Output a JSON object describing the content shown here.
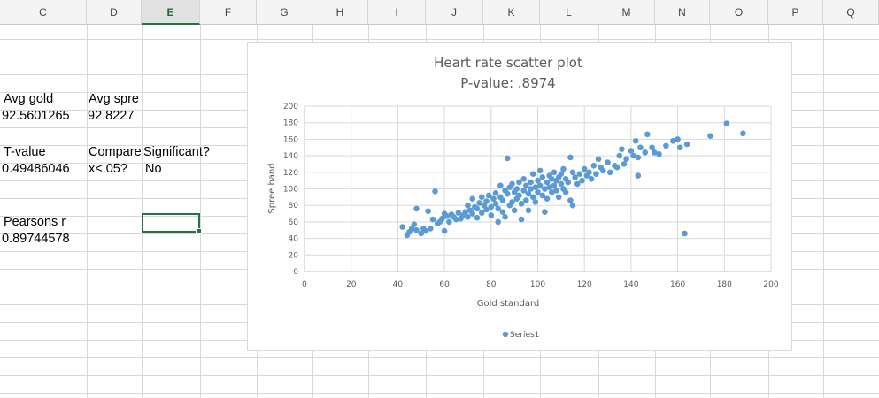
{
  "columns": [
    "C",
    "D",
    "E",
    "F",
    "G",
    "H",
    "I",
    "J",
    "K",
    "L",
    "M",
    "N",
    "O",
    "P",
    "Q"
  ],
  "selected_column": "E",
  "cells": {
    "c5": "Avg gold",
    "d5": "Avg spre",
    "c6": "92.5601265",
    "d6": "92.8227",
    "c8": "T-value",
    "d8": "Compare",
    "e8": "Significant?",
    "c9": "0.49486046",
    "d9": "x<.05?",
    "e9": "No",
    "c12": "Pearsons r",
    "c13": "0.89744578"
  },
  "colors": {
    "series": "#5b9bd5",
    "selection": "#217346"
  },
  "chart_data": {
    "type": "scatter",
    "title": "Heart rate scatter plot",
    "subtitle": "P-value: .8974",
    "xlabel": "Gold standard",
    "ylabel": "Spree band",
    "xlim": [
      0,
      200
    ],
    "ylim": [
      0,
      200
    ],
    "x_ticks": [
      "0",
      "20",
      "40",
      "60",
      "80",
      "100",
      "120",
      "140",
      "160",
      "180",
      "200"
    ],
    "y_ticks": [
      "0",
      "20",
      "40",
      "60",
      "80",
      "100",
      "120",
      "140",
      "160",
      "180",
      "200"
    ],
    "grid": true,
    "legend": "bottom",
    "series": [
      {
        "name": "Series1",
        "points": [
          [
            42,
            54
          ],
          [
            44,
            44
          ],
          [
            45,
            48
          ],
          [
            46,
            52
          ],
          [
            47,
            57
          ],
          [
            48,
            50
          ],
          [
            48,
            76
          ],
          [
            50,
            46
          ],
          [
            51,
            52
          ],
          [
            52,
            49
          ],
          [
            53,
            73
          ],
          [
            54,
            52
          ],
          [
            55,
            63
          ],
          [
            56,
            97
          ],
          [
            57,
            58
          ],
          [
            58,
            60
          ],
          [
            59,
            64
          ],
          [
            60,
            49
          ],
          [
            60,
            70
          ],
          [
            61,
            67
          ],
          [
            62,
            60
          ],
          [
            63,
            69
          ],
          [
            64,
            66
          ],
          [
            65,
            63
          ],
          [
            66,
            71
          ],
          [
            67,
            64
          ],
          [
            68,
            68
          ],
          [
            69,
            72
          ],
          [
            70,
            66
          ],
          [
            70,
            80
          ],
          [
            71,
            74
          ],
          [
            72,
            70
          ],
          [
            72,
            88
          ],
          [
            73,
            78
          ],
          [
            74,
            76
          ],
          [
            74,
            65
          ],
          [
            75,
            83
          ],
          [
            76,
            71
          ],
          [
            76,
            90
          ],
          [
            77,
            80
          ],
          [
            78,
            75
          ],
          [
            78,
            85
          ],
          [
            79,
            92
          ],
          [
            80,
            78
          ],
          [
            80,
            68
          ],
          [
            81,
            88
          ],
          [
            82,
            82
          ],
          [
            82,
            95
          ],
          [
            83,
            76
          ],
          [
            83,
            60
          ],
          [
            84,
            90
          ],
          [
            84,
            104
          ],
          [
            85,
            86
          ],
          [
            85,
            72
          ],
          [
            86,
            98
          ],
          [
            86,
            66
          ],
          [
            87,
            94
          ],
          [
            87,
            137
          ],
          [
            88,
            102
          ],
          [
            88,
            80
          ],
          [
            89,
            84
          ],
          [
            89,
            106
          ],
          [
            90,
            96
          ],
          [
            90,
            74
          ],
          [
            91,
            100
          ],
          [
            91,
            88
          ],
          [
            92,
            92
          ],
          [
            92,
            108
          ],
          [
            93,
            82
          ],
          [
            93,
            63
          ],
          [
            94,
            98
          ],
          [
            94,
            112
          ],
          [
            95,
            104
          ],
          [
            95,
            86
          ],
          [
            96,
            94
          ],
          [
            96,
            74
          ],
          [
            97,
            108
          ],
          [
            97,
            100
          ],
          [
            98,
            90
          ],
          [
            98,
            118
          ],
          [
            99,
            102
          ],
          [
            99,
            84
          ],
          [
            100,
            110
          ],
          [
            100,
            96
          ],
          [
            101,
            122
          ],
          [
            101,
            104
          ],
          [
            102,
            92
          ],
          [
            102,
            114
          ],
          [
            103,
            100
          ],
          [
            103,
            72
          ],
          [
            104,
            108
          ],
          [
            104,
            88
          ],
          [
            105,
            116
          ],
          [
            105,
            102
          ],
          [
            106,
            96
          ],
          [
            106,
            112
          ],
          [
            107,
            120
          ],
          [
            107,
            104
          ],
          [
            108,
            98
          ],
          [
            108,
            110
          ],
          [
            109,
            114
          ],
          [
            109,
            90
          ],
          [
            110,
            106
          ],
          [
            110,
            118
          ],
          [
            111,
            100
          ],
          [
            111,
            124
          ],
          [
            112,
            112
          ],
          [
            112,
            96
          ],
          [
            113,
            108
          ],
          [
            114,
            138
          ],
          [
            114,
            86
          ],
          [
            115,
            120
          ],
          [
            115,
            80
          ],
          [
            116,
            114
          ],
          [
            117,
            106
          ],
          [
            118,
            118
          ],
          [
            119,
            110
          ],
          [
            120,
            124
          ],
          [
            121,
            116
          ],
          [
            122,
            120
          ],
          [
            123,
            112
          ],
          [
            124,
            128
          ],
          [
            125,
            118
          ],
          [
            126,
            136
          ],
          [
            127,
            126
          ],
          [
            128,
            122
          ],
          [
            130,
            132
          ],
          [
            131,
            120
          ],
          [
            133,
            128
          ],
          [
            134,
            126
          ],
          [
            135,
            140
          ],
          [
            136,
            148
          ],
          [
            137,
            130
          ],
          [
            138,
            136
          ],
          [
            140,
            146
          ],
          [
            141,
            140
          ],
          [
            142,
            158
          ],
          [
            143,
            138
          ],
          [
            143,
            116
          ],
          [
            144,
            150
          ],
          [
            146,
            144
          ],
          [
            147,
            166
          ],
          [
            149,
            150
          ],
          [
            150,
            144
          ],
          [
            152,
            142
          ],
          [
            155,
            152
          ],
          [
            158,
            158
          ],
          [
            160,
            160
          ],
          [
            161,
            150
          ],
          [
            163,
            46
          ],
          [
            164,
            154
          ],
          [
            174,
            164
          ],
          [
            181,
            179
          ],
          [
            188,
            167
          ]
        ]
      }
    ]
  }
}
